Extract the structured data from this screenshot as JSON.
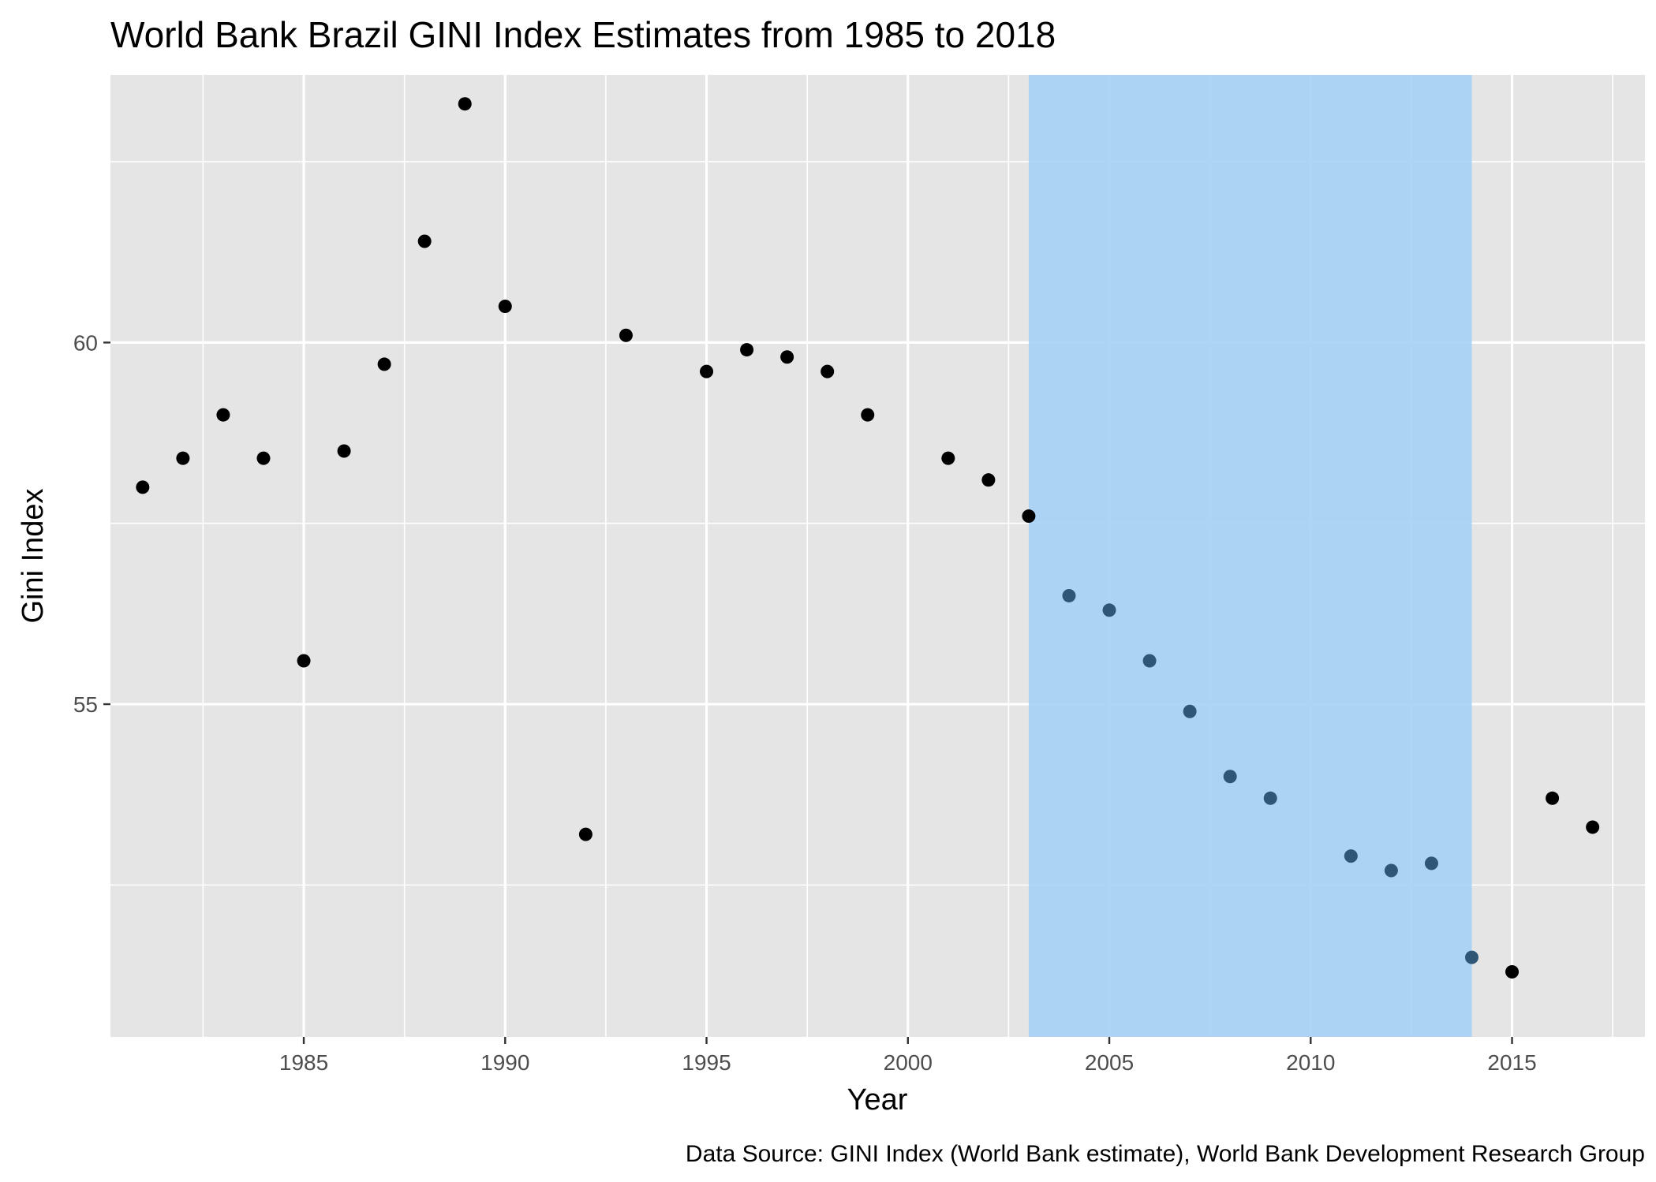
{
  "chart_data": {
    "type": "scatter",
    "title": "World Bank Brazil GINI Index Estimates from 1985 to 2018",
    "xlabel": "Year",
    "ylabel": "Gini Index",
    "caption": "Data Source: GINI Index (World Bank estimate), World Bank Development Research Group",
    "xlim": [
      1980.2,
      2018.3
    ],
    "ylim": [
      50.4,
      63.7
    ],
    "x_ticks": [
      1985,
      1990,
      1995,
      2000,
      2005,
      2010,
      2015
    ],
    "y_ticks": [
      55,
      60
    ],
    "grid": true,
    "highlight_region": {
      "x_start": 2003,
      "x_end": 2014,
      "color": "#a8d1f5"
    },
    "colors": {
      "panel": "#e5e5e5",
      "grid": "#ffffff",
      "point": "#000000",
      "point_highlighted": "#2f5675",
      "highlight": "#a8d1f5"
    },
    "x": [
      1981,
      1982,
      1983,
      1984,
      1985,
      1986,
      1987,
      1988,
      1989,
      1990,
      1992,
      1993,
      1995,
      1996,
      1997,
      1998,
      1999,
      2001,
      2002,
      2003,
      2004,
      2005,
      2006,
      2007,
      2008,
      2009,
      2011,
      2012,
      2013,
      2014,
      2015,
      2016,
      2017
    ],
    "values": [
      58.0,
      58.4,
      59.0,
      58.4,
      55.6,
      58.5,
      59.7,
      61.4,
      63.3,
      60.5,
      53.2,
      60.1,
      59.6,
      59.9,
      59.8,
      59.6,
      59.0,
      58.4,
      58.1,
      57.6,
      56.5,
      56.3,
      55.6,
      54.9,
      54.0,
      53.7,
      52.9,
      52.7,
      52.8,
      51.5,
      51.3,
      53.7,
      53.3
    ]
  }
}
